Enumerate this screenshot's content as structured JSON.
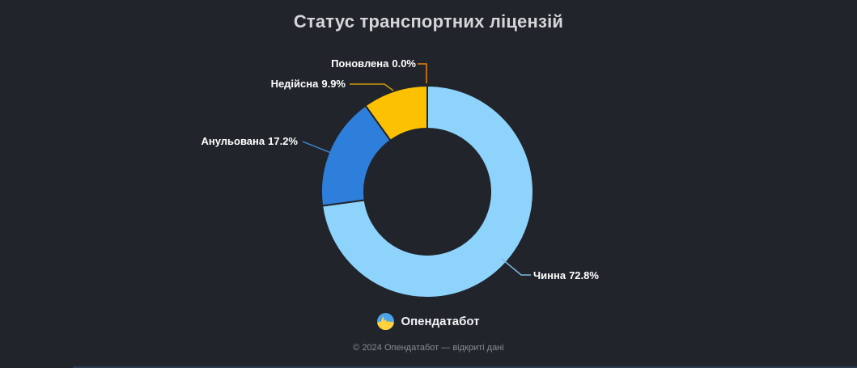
{
  "page": {
    "background_color": "#21252b"
  },
  "chart_data": {
    "type": "pie",
    "title": "Статус транспортних ліцензій",
    "hole_ratio": 0.6,
    "direction": "clockwise",
    "rotation_start": "top (12 o'clock)",
    "labels_position": "outside with leader lines",
    "legend": "none",
    "slices": [
      {
        "label": "Чинна",
        "value": 72.8,
        "pct_text": "72.8%",
        "color": "#8dd3fb",
        "leader_color": "#7fb9dd"
      },
      {
        "label": "Анульована",
        "value": 17.2,
        "pct_text": "17.2%",
        "color": "#2e7edb",
        "leader_color": "#3d7fc6"
      },
      {
        "label": "Недійсна",
        "value": 9.9,
        "pct_text": "9.9%",
        "color": "#fdc103",
        "leader_color": "#cf9a06"
      },
      {
        "label": "Поновлена",
        "value": 0.0,
        "pct_text": "0.0%",
        "color": "#e8820c",
        "leader_color": "#e8820c"
      }
    ]
  },
  "footer": {
    "brand": "Опендатабот",
    "copyright": "© 2024 Опендатабот — відкриті дані",
    "logo_colors": {
      "top": "#4da3ea",
      "bottom": "#ffd23e"
    }
  }
}
